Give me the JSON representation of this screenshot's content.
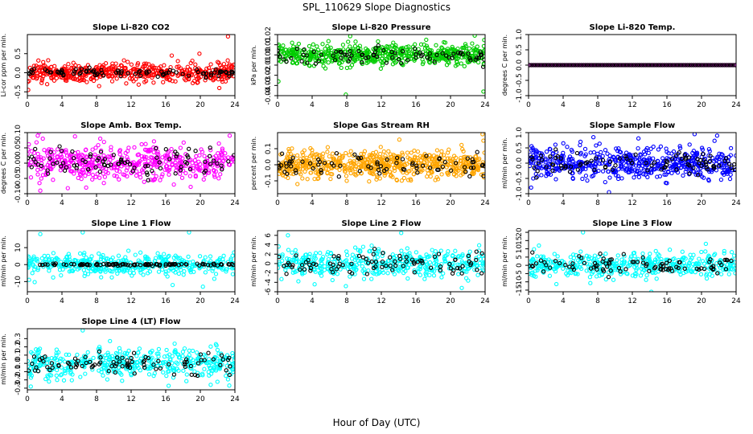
{
  "page": {
    "title": "SPL_110629  Slope Diagnostics",
    "xlabel": "Hour of Day (UTC)"
  },
  "colors": {
    "red": "#ff0000",
    "green": "#00cc00",
    "magenta": "#ff00ff",
    "orange": "#ffa500",
    "blue": "#0000ff",
    "cyan": "#00ffff",
    "black": "#000000"
  },
  "chart_data": [
    {
      "type": "scatter",
      "title": "Slope Li-820 CO2",
      "ylabel": "Li-cor ppm per min.",
      "xlim": [
        0,
        24
      ],
      "xticks": [
        0,
        4,
        8,
        12,
        16,
        20,
        24
      ],
      "ylim": [
        -0.6,
        1.0
      ],
      "yticks": [
        -0.5,
        0.0,
        0.5
      ],
      "color": "#ff0000",
      "series": [
        {
          "color": "#ff0000",
          "n": 520,
          "center": 0.0,
          "spread": 0.12,
          "outliers": [
            [
              8.3,
              -0.35
            ],
            [
              16.7,
              0.45
            ],
            [
              19.9,
              0.5
            ],
            [
              22.2,
              -0.4
            ],
            [
              23.2,
              0.95
            ],
            [
              0.1,
              -0.45
            ]
          ]
        },
        {
          "color": "#000000",
          "n": 90,
          "center": 0.0,
          "spread": 0.06
        }
      ]
    },
    {
      "type": "scatter",
      "title": "Slope Li-820 Pressure",
      "ylabel": "kPa per min.",
      "xlim": [
        0,
        24
      ],
      "xticks": [
        0,
        4,
        8,
        12,
        16,
        20,
        24
      ],
      "ylim": [
        -0.04,
        0.02
      ],
      "yticks": [
        -0.04,
        -0.03,
        -0.02,
        -0.01,
        0.0,
        0.01,
        0.02
      ],
      "color": "#00cc00",
      "series": [
        {
          "color": "#00cc00",
          "n": 560,
          "center": 0.0,
          "spread": 0.005,
          "outliers": [
            [
              7.9,
              -0.039
            ],
            [
              23.8,
              -0.036
            ],
            [
              0.1,
              -0.026
            ],
            [
              22.8,
              0.019
            ]
          ]
        },
        {
          "color": "#000000",
          "n": 80,
          "center": 0.0,
          "spread": 0.004
        }
      ]
    },
    {
      "type": "scatter",
      "title": "Slope Li-820 Temp.",
      "ylabel": "degrees C per min.",
      "xlim": [
        0,
        24
      ],
      "xticks": [
        0,
        4,
        8,
        12,
        16,
        20,
        24
      ],
      "ylim": [
        -1.0,
        1.0
      ],
      "yticks": [
        -1.0,
        -0.5,
        0.0,
        0.5,
        1.0
      ],
      "color": "#ff00ff",
      "series": [
        {
          "color": "#ff00ff",
          "n": 160,
          "center": 0.0,
          "spread": 0.0,
          "line": true
        },
        {
          "color": "#000000",
          "n": 100,
          "center": 0.0,
          "spread": 0.0,
          "line": true
        }
      ]
    },
    {
      "type": "scatter",
      "title": "Slope Amb. Box Temp.",
      "ylabel": "degrees C per min.",
      "xlim": [
        0,
        24
      ],
      "xticks": [
        0,
        4,
        8,
        12,
        16,
        20,
        24
      ],
      "ylim": [
        -0.1,
        0.1
      ],
      "yticks": [
        -0.1,
        -0.05,
        0.0,
        0.05,
        0.1
      ],
      "color": "#ff00ff",
      "series": [
        {
          "color": "#ff00ff",
          "n": 480,
          "center": 0.0,
          "spread": 0.03,
          "outliers": [
            [
              1.2,
              0.09
            ],
            [
              1.5,
              -0.09
            ],
            [
              6.8,
              -0.08
            ],
            [
              23.4,
              0.09
            ]
          ]
        },
        {
          "color": "#000000",
          "n": 90,
          "center": 0.0,
          "spread": 0.025
        }
      ]
    },
    {
      "type": "scatter",
      "title": "Slope Gas Stream RH",
      "ylabel": "percent per min.",
      "xlim": [
        0,
        24
      ],
      "xticks": [
        0,
        4,
        8,
        12,
        16,
        20,
        24
      ],
      "ylim": [
        -0.18,
        0.2
      ],
      "yticks": [
        -0.1,
        0.0,
        0.1
      ],
      "color": "#ffa500",
      "series": [
        {
          "color": "#ffa500",
          "n": 620,
          "center": 0.0,
          "spread": 0.04,
          "outliers": [
            [
              23.7,
              0.19
            ],
            [
              23.8,
              0.15
            ],
            [
              8.0,
              -0.1
            ],
            [
              2.3,
              -0.12
            ]
          ]
        },
        {
          "color": "#000000",
          "n": 80,
          "center": 0.0,
          "spread": 0.03
        }
      ]
    },
    {
      "type": "scatter",
      "title": "Slope Sample Flow",
      "ylabel": "ml/min per min.",
      "xlim": [
        0,
        24
      ],
      "xticks": [
        0,
        4,
        8,
        12,
        16,
        20,
        24
      ],
      "ylim": [
        -1.0,
        1.0
      ],
      "yticks": [
        -1.0,
        -0.5,
        0.0,
        0.5,
        1.0
      ],
      "color": "#0000ff",
      "series": [
        {
          "color": "#0000ff",
          "n": 560,
          "center": 0.0,
          "spread": 0.25,
          "outliers": [
            [
              0.3,
              -0.8
            ],
            [
              9.3,
              -0.95
            ],
            [
              7.5,
              0.85
            ],
            [
              19.2,
              0.95
            ],
            [
              21.8,
              0.9
            ]
          ]
        },
        {
          "color": "#000000",
          "n": 90,
          "center": 0.0,
          "spread": 0.2
        }
      ]
    },
    {
      "type": "scatter",
      "title": "Slope Line 1 Flow",
      "ylabel": "ml/min per min.",
      "xlim": [
        0,
        24
      ],
      "xticks": [
        0,
        4,
        8,
        12,
        16,
        20,
        24
      ],
      "ylim": [
        -16,
        20
      ],
      "yticks": [
        -10,
        0,
        10
      ],
      "color": "#00ffff",
      "series": [
        {
          "color": "#00ffff",
          "n": 430,
          "center": 0.0,
          "spread": 3.0,
          "outliers": [
            [
              1.5,
              18
            ],
            [
              6.4,
              19
            ],
            [
              18.7,
              19
            ],
            [
              0.2,
              -9
            ],
            [
              16.8,
              -12
            ],
            [
              20.3,
              -13
            ]
          ]
        },
        {
          "color": "#000000",
          "n": 110,
          "center": 0.0,
          "spread": 0.3
        }
      ]
    },
    {
      "type": "scatter",
      "title": "Slope Line 2 Flow",
      "ylabel": "ml/min per min.",
      "xlim": [
        0,
        24
      ],
      "xticks": [
        0,
        4,
        8,
        12,
        16,
        20,
        24
      ],
      "ylim": [
        -6,
        7
      ],
      "yticks": [
        -6,
        -4,
        -2,
        0,
        2,
        4,
        6
      ],
      "color": "#00ffff",
      "series": [
        {
          "color": "#00ffff",
          "n": 430,
          "center": 0.0,
          "spread": 1.4,
          "outliers": [
            [
              1.2,
              6
            ],
            [
              14.3,
              6.5
            ],
            [
              21.3,
              -5.2
            ],
            [
              7.9,
              -4.8
            ]
          ]
        },
        {
          "color": "#000000",
          "n": 90,
          "center": 0.0,
          "spread": 1.3
        }
      ]
    },
    {
      "type": "scatter",
      "title": "Slope Line 3 Flow",
      "ylabel": "ml/min per min.",
      "xlim": [
        0,
        24
      ],
      "xticks": [
        0,
        4,
        8,
        12,
        16,
        20,
        24
      ],
      "ylim": [
        -16,
        21
      ],
      "yticks": [
        -15,
        -10,
        -5,
        0,
        5,
        10,
        15,
        20
      ],
      "color": "#00ffff",
      "series": [
        {
          "color": "#00ffff",
          "n": 430,
          "center": 0.0,
          "spread": 3.5,
          "outliers": [
            [
              6.3,
              20
            ],
            [
              1.2,
              12
            ],
            [
              20.5,
              13
            ],
            [
              23.5,
              8
            ],
            [
              14.2,
              -16
            ]
          ]
        },
        {
          "color": "#000000",
          "n": 90,
          "center": 0.0,
          "spread": 3.0
        }
      ]
    },
    {
      "type": "scatter",
      "title": "Slope Line 4 (LT) Flow",
      "ylabel": "ml/min per min.",
      "xlim": [
        0,
        24
      ],
      "xticks": [
        0,
        4,
        8,
        12,
        16,
        20,
        24
      ],
      "ylim": [
        -0.32,
        0.42
      ],
      "yticks": [
        -0.3,
        -0.2,
        -0.1,
        0.0,
        0.1,
        0.2,
        0.3
      ],
      "color": "#00ffff",
      "series": [
        {
          "color": "#00ffff",
          "n": 430,
          "center": 0.0,
          "spread": 0.09,
          "outliers": [
            [
              6.4,
              0.4
            ],
            [
              0.4,
              -0.28
            ],
            [
              2.5,
              -0.22
            ],
            [
              21.2,
              -0.26
            ]
          ]
        },
        {
          "color": "#000000",
          "n": 90,
          "center": 0.0,
          "spread": 0.07
        }
      ]
    }
  ]
}
